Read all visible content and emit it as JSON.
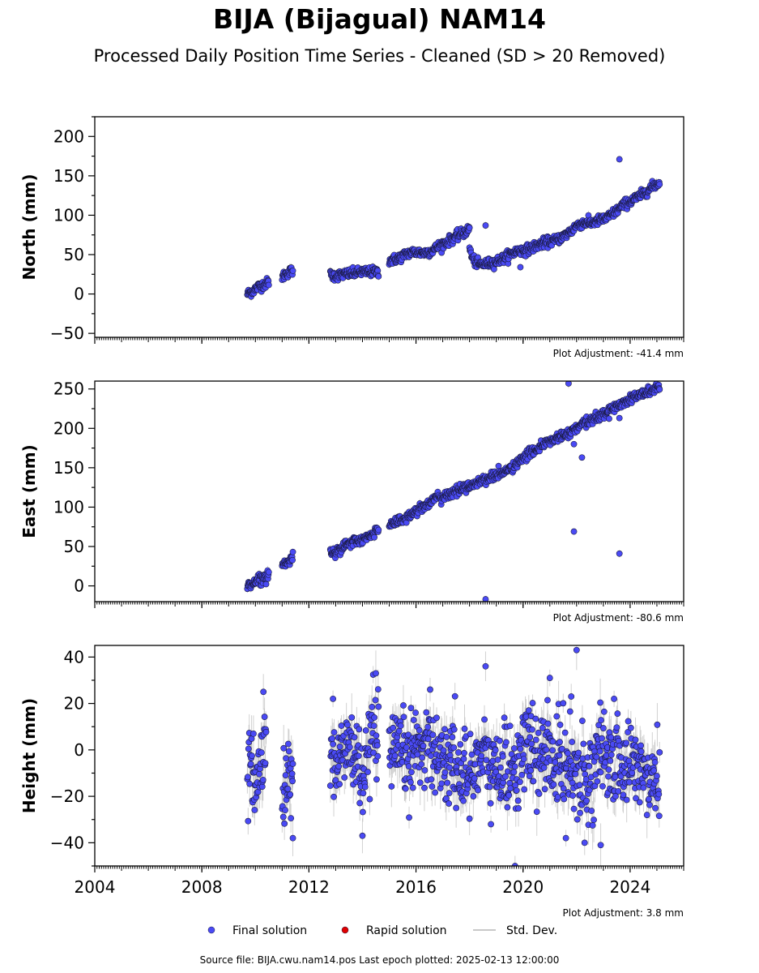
{
  "title": "BIJA (Bijagual) NAM14",
  "subtitle": "Processed Daily Position Time Series - Cleaned (SD > 20 Removed)",
  "source_line": "Source file: BIJA.cwu.nam14.pos  Last epoch plotted: 2025-02-13 12:00:00",
  "legend": [
    {
      "label": "Final solution",
      "color": "#4a4af5",
      "marker": "circle"
    },
    {
      "label": "Rapid solution",
      "color": "#e00000",
      "marker": "circle"
    },
    {
      "label": "Std. Dev.",
      "color": "#c8c8c8",
      "marker": "line"
    }
  ],
  "chart_data": [
    {
      "type": "scatter",
      "ylabel": "North (mm)",
      "xlim": [
        2004,
        2026
      ],
      "ylim": [
        -55,
        225
      ],
      "xticks": [
        2004,
        2008,
        2012,
        2016,
        2020,
        2024
      ],
      "yticks": [
        -50,
        0,
        50,
        100,
        150,
        200
      ],
      "show_xticklabels": false,
      "adjustment": "Plot Adjustment: -41.4 mm",
      "errorbar_sd": 4,
      "segments": [
        [
          [
            2009.7,
            0
          ],
          [
            2009.9,
            4
          ],
          [
            2010.1,
            9
          ],
          [
            2010.3,
            12
          ],
          [
            2010.5,
            15
          ]
        ],
        [
          [
            2011.0,
            22
          ],
          [
            2011.2,
            27
          ],
          [
            2011.4,
            30
          ]
        ],
        [
          [
            2012.8,
            24
          ],
          [
            2013.0,
            23
          ],
          [
            2013.3,
            25
          ],
          [
            2013.6,
            26
          ],
          [
            2014.0,
            28
          ],
          [
            2014.3,
            28
          ],
          [
            2014.6,
            28
          ]
        ],
        [
          [
            2015.0,
            42
          ],
          [
            2015.3,
            45
          ],
          [
            2015.6,
            50
          ],
          [
            2015.8,
            53
          ],
          [
            2016.0,
            53
          ],
          [
            2016.3,
            52
          ],
          [
            2016.6,
            55
          ],
          [
            2016.9,
            62
          ],
          [
            2017.2,
            67
          ],
          [
            2017.5,
            73
          ],
          [
            2017.8,
            78
          ],
          [
            2018.0,
            82
          ]
        ],
        [
          [
            2018.0,
            60
          ],
          [
            2018.1,
            45
          ],
          [
            2018.3,
            38
          ],
          [
            2018.6,
            38
          ],
          [
            2018.9,
            40
          ],
          [
            2019.2,
            44
          ],
          [
            2019.5,
            50
          ],
          [
            2019.8,
            55
          ],
          [
            2020.0,
            55
          ],
          [
            2020.3,
            58
          ],
          [
            2020.6,
            63
          ],
          [
            2020.9,
            66
          ],
          [
            2021.2,
            68
          ],
          [
            2021.5,
            73
          ],
          [
            2021.8,
            80
          ],
          [
            2022.0,
            87
          ],
          [
            2022.2,
            90
          ],
          [
            2022.5,
            90
          ],
          [
            2022.8,
            93
          ],
          [
            2023.1,
            96
          ],
          [
            2023.4,
            103
          ],
          [
            2023.7,
            112
          ],
          [
            2024.0,
            118
          ],
          [
            2024.3,
            123
          ],
          [
            2024.6,
            130
          ],
          [
            2024.9,
            138
          ],
          [
            2025.1,
            141
          ]
        ]
      ],
      "jitter": 3,
      "outliers": [
        [
          2018.6,
          87
        ],
        [
          2019.9,
          34
        ],
        [
          2023.6,
          171
        ]
      ]
    },
    {
      "type": "scatter",
      "ylabel": "East (mm)",
      "xlim": [
        2004,
        2026
      ],
      "ylim": [
        -20,
        260
      ],
      "xticks": [
        2004,
        2008,
        2012,
        2016,
        2020,
        2024
      ],
      "yticks": [
        0,
        50,
        100,
        150,
        200,
        250
      ],
      "show_xticklabels": false,
      "adjustment": "Plot Adjustment: -80.6 mm",
      "errorbar_sd": 4,
      "segments": [
        [
          [
            2009.7,
            0
          ],
          [
            2009.9,
            4
          ],
          [
            2010.2,
            9
          ],
          [
            2010.5,
            14
          ]
        ],
        [
          [
            2011.0,
            27
          ],
          [
            2011.2,
            30
          ],
          [
            2011.4,
            36
          ]
        ],
        [
          [
            2012.8,
            43
          ],
          [
            2013.0,
            44
          ],
          [
            2013.3,
            50
          ],
          [
            2013.6,
            55
          ],
          [
            2014.0,
            59
          ],
          [
            2014.3,
            63
          ],
          [
            2014.6,
            72
          ]
        ],
        [
          [
            2015.0,
            79
          ],
          [
            2015.3,
            82
          ],
          [
            2015.6,
            86
          ],
          [
            2016.0,
            95
          ],
          [
            2016.4,
            104
          ],
          [
            2016.8,
            112
          ],
          [
            2017.2,
            115
          ],
          [
            2017.6,
            122
          ],
          [
            2018.0,
            127
          ],
          [
            2018.4,
            133
          ],
          [
            2018.8,
            138
          ],
          [
            2019.2,
            143
          ],
          [
            2019.6,
            150
          ],
          [
            2020.0,
            162
          ],
          [
            2020.4,
            172
          ],
          [
            2020.8,
            180
          ],
          [
            2021.2,
            187
          ],
          [
            2021.6,
            192
          ],
          [
            2022.0,
            200
          ],
          [
            2022.4,
            208
          ],
          [
            2022.8,
            215
          ],
          [
            2023.2,
            222
          ],
          [
            2023.6,
            230
          ],
          [
            2024.0,
            238
          ],
          [
            2024.4,
            243
          ],
          [
            2024.8,
            248
          ],
          [
            2025.1,
            253
          ]
        ]
      ],
      "jitter": 3,
      "outliers": [
        [
          2018.6,
          -17
        ],
        [
          2021.7,
          257
        ],
        [
          2021.9,
          69
        ],
        [
          2021.9,
          180
        ],
        [
          2022.2,
          163
        ],
        [
          2023.6,
          41
        ],
        [
          2023.6,
          213
        ]
      ]
    },
    {
      "type": "scatter",
      "ylabel": "Height (mm)",
      "xlim": [
        2004,
        2026
      ],
      "ylim": [
        -50,
        45
      ],
      "xticks": [
        2004,
        2008,
        2012,
        2016,
        2020,
        2024
      ],
      "xticklabels": [
        "2004",
        "2008",
        "2012",
        "2016",
        "2020",
        "2024"
      ],
      "yticks": [
        -40,
        -20,
        0,
        20,
        40
      ],
      "show_xticklabels": true,
      "adjustment": "Plot Adjustment: 3.8 mm",
      "errorbar_sd": 7,
      "segments": [
        [
          [
            2009.7,
            -10
          ],
          [
            2010.0,
            -12
          ],
          [
            2010.2,
            -8
          ],
          [
            2010.4,
            2
          ]
        ],
        [
          [
            2011.0,
            -18
          ],
          [
            2011.2,
            -14
          ],
          [
            2011.4,
            -12
          ]
        ],
        [
          [
            2012.8,
            -2
          ],
          [
            2013.1,
            -6
          ],
          [
            2013.4,
            2
          ],
          [
            2013.8,
            -4
          ],
          [
            2014.1,
            -14
          ],
          [
            2014.4,
            8
          ],
          [
            2014.6,
            4
          ]
        ],
        [
          [
            2015.0,
            -4
          ],
          [
            2015.3,
            -2
          ],
          [
            2015.6,
            -4
          ],
          [
            2015.9,
            0
          ],
          [
            2016.2,
            2
          ],
          [
            2016.5,
            6
          ],
          [
            2016.8,
            -2
          ],
          [
            2017.1,
            -6
          ],
          [
            2017.4,
            -4
          ],
          [
            2017.7,
            -10
          ],
          [
            2018.0,
            -12
          ],
          [
            2018.3,
            -2
          ],
          [
            2018.6,
            -4
          ],
          [
            2018.9,
            -8
          ],
          [
            2019.2,
            -10
          ],
          [
            2019.5,
            -6
          ],
          [
            2019.8,
            -8
          ],
          [
            2020.1,
            2
          ],
          [
            2020.4,
            -2
          ],
          [
            2020.7,
            -4
          ],
          [
            2021.0,
            0
          ],
          [
            2021.3,
            -6
          ],
          [
            2021.6,
            -4
          ],
          [
            2021.9,
            -8
          ],
          [
            2022.2,
            -10
          ],
          [
            2022.5,
            -12
          ],
          [
            2022.8,
            -2
          ],
          [
            2023.1,
            -6
          ],
          [
            2023.4,
            -4
          ],
          [
            2023.7,
            -8
          ],
          [
            2024.0,
            -6
          ],
          [
            2024.3,
            -4
          ],
          [
            2024.6,
            -14
          ],
          [
            2024.9,
            -10
          ],
          [
            2025.1,
            -14
          ]
        ]
      ],
      "jitter": 9,
      "outliers": [
        [
          2010.3,
          25
        ],
        [
          2011.4,
          -38
        ],
        [
          2012.9,
          22
        ],
        [
          2014.0,
          -37
        ],
        [
          2014.5,
          33
        ],
        [
          2018.6,
          36
        ],
        [
          2018.8,
          -32
        ],
        [
          2019.7,
          -50
        ],
        [
          2021.0,
          31
        ],
        [
          2021.6,
          -38
        ],
        [
          2021.8,
          23
        ],
        [
          2022.0,
          43
        ],
        [
          2022.3,
          -40
        ],
        [
          2022.9,
          -41
        ],
        [
          2023.4,
          22
        ]
      ]
    }
  ]
}
